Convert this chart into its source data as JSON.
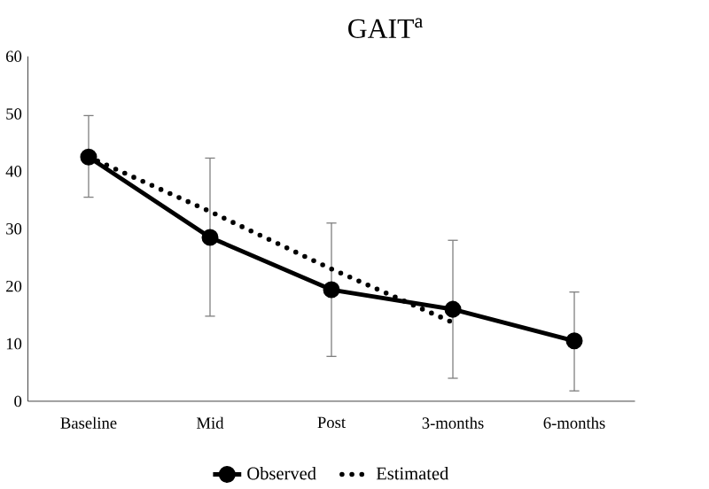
{
  "chart_data": {
    "type": "line",
    "title": "GAIT$^{a}$",
    "categories": [
      "Baseline",
      "Mid",
      "Post",
      "3-months",
      "6-months"
    ],
    "series": [
      {
        "name": "Observed",
        "color": "#000000",
        "marker": "circle",
        "line_style": "solid",
        "values": [
          42.5,
          28.5,
          19.4,
          16,
          10.5
        ],
        "errors": [
          [
            35.5,
            49.7
          ],
          [
            14.8,
            42.3
          ],
          [
            7.8,
            31
          ],
          [
            4,
            28
          ],
          [
            1.8,
            19
          ]
        ]
      },
      {
        "name": "Estimated",
        "color": "#000000",
        "marker": "none",
        "line_style": "dotted",
        "values": [
          42.5,
          33,
          23,
          13.7,
          null
        ]
      }
    ],
    "ylim": [
      0,
      60
    ],
    "yticks": [
      0,
      10,
      20,
      30,
      40,
      50,
      60
    ],
    "grid": false,
    "legend": "bottom"
  }
}
